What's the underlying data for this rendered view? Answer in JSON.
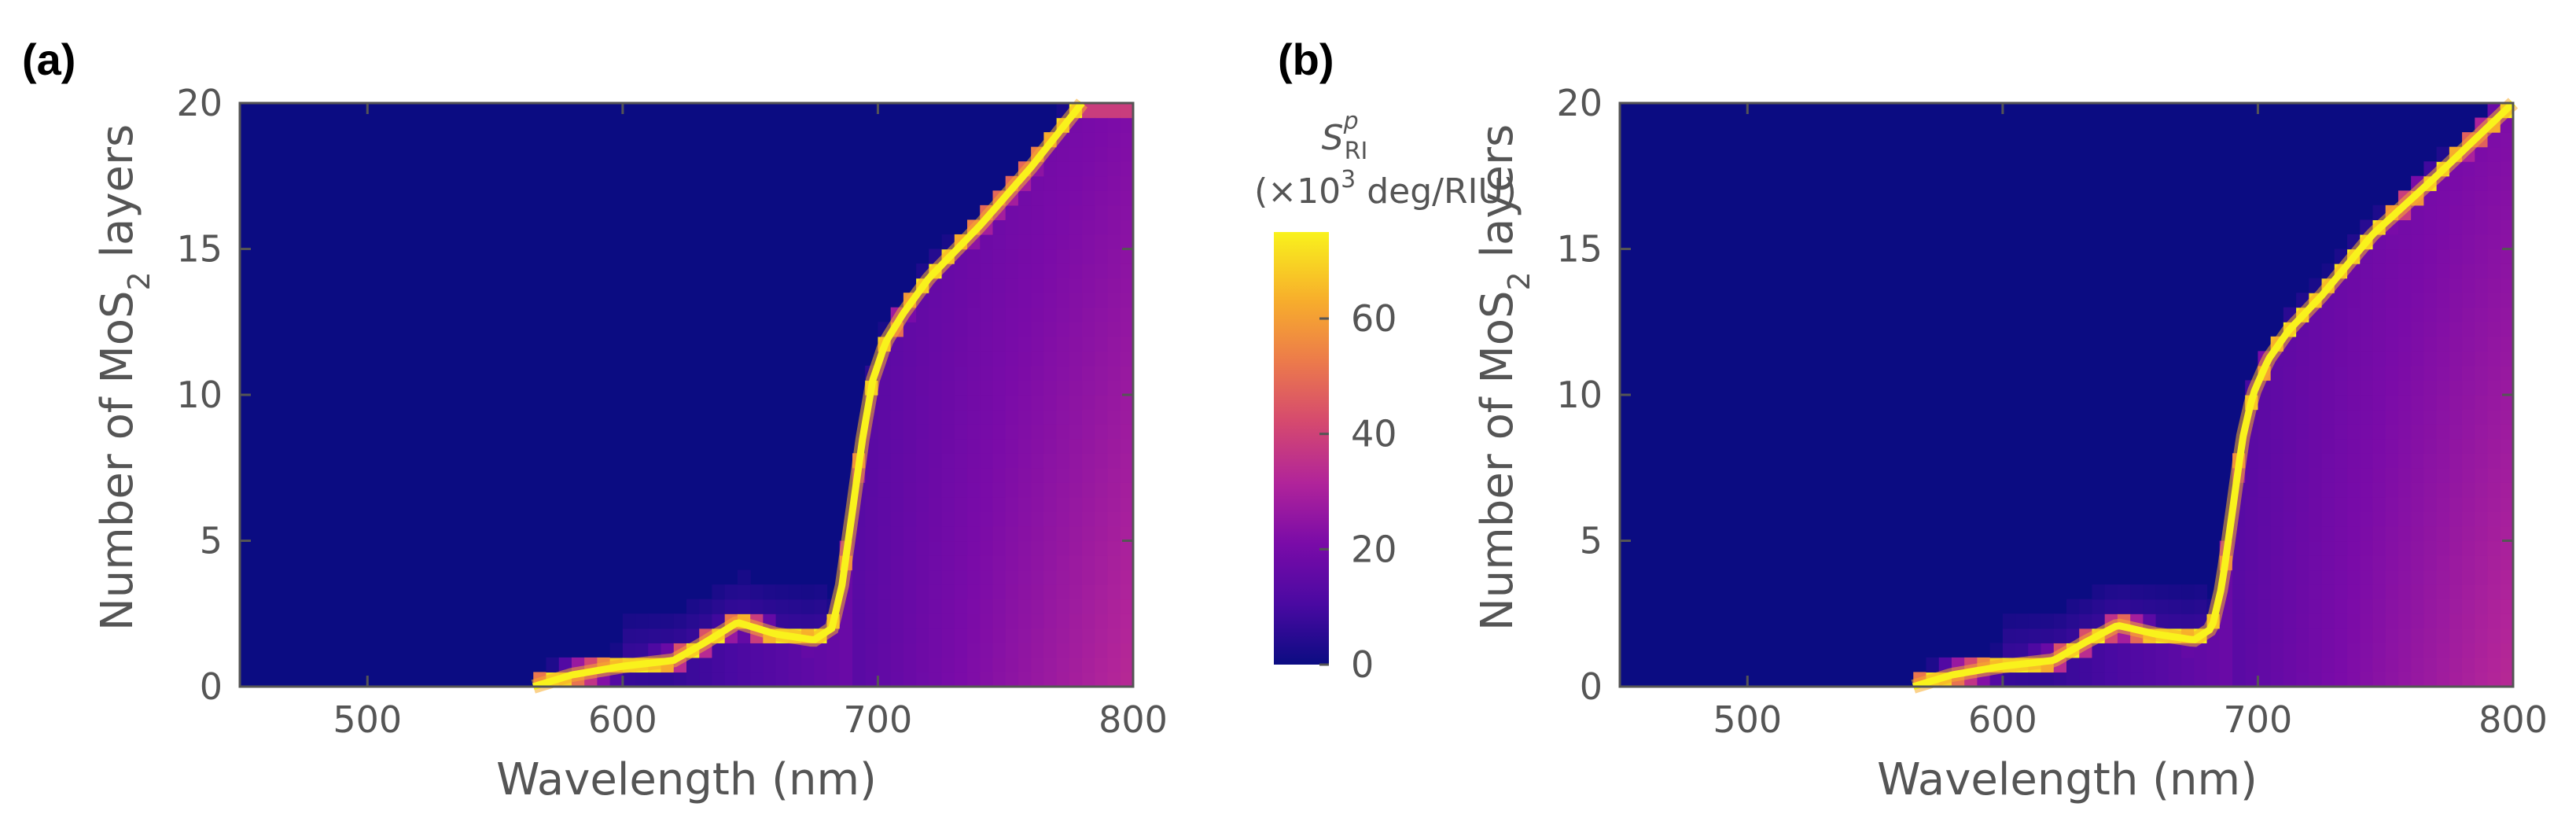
{
  "colors": {
    "colormap": [
      "#0b0c82",
      "#4a09a2",
      "#7a0ba8",
      "#b1249a",
      "#d5496f",
      "#ec7a4b",
      "#f7ad2c",
      "#f9f21c"
    ],
    "axis": "#555555",
    "panel_label": "#000000"
  },
  "chart_data": [
    {
      "panel": "(a)",
      "type": "heatmap",
      "title": "",
      "xlabel": "Wavelength (nm)",
      "ylabel_prefix": "Number of MoS",
      "ylabel_sub": "2",
      "ylabel_suffix": " layers",
      "xlim": [
        450,
        800
      ],
      "ylim": [
        0,
        20
      ],
      "xticks": [
        500,
        600,
        700,
        800
      ],
      "yticks": [
        0,
        5,
        10,
        15,
        20
      ],
      "xticklabels": [
        "500",
        "600",
        "700",
        "800"
      ],
      "yticklabels": [
        "0",
        "5",
        "10",
        "15",
        "20"
      ],
      "ridge": {
        "description": "maximum sensitivity (~75e3 deg/RIU) versus wavelength and layer number",
        "points": [
          [
            565,
            0
          ],
          [
            580,
            0.4
          ],
          [
            600,
            0.7
          ],
          [
            620,
            0.9
          ],
          [
            632,
            1.5
          ],
          [
            645,
            2.2
          ],
          [
            660,
            1.8
          ],
          [
            675,
            1.6
          ],
          [
            682,
            2.0
          ],
          [
            686,
            3.5
          ],
          [
            690,
            6.0
          ],
          [
            694,
            8.5
          ],
          [
            698,
            10.5
          ],
          [
            703,
            11.8
          ],
          [
            710,
            12.8
          ],
          [
            720,
            14.0
          ],
          [
            740,
            15.8
          ],
          [
            760,
            17.8
          ],
          [
            780,
            20.0
          ]
        ]
      },
      "background": "low sensitivity (~2e3) left of ridge; rises to ~20-35e3 toward 800 nm, 0 layers right of ridge"
    },
    {
      "panel": "(b)",
      "type": "heatmap",
      "title": "",
      "xlabel": "Wavelength (nm)",
      "ylabel_prefix": "Number of MoS",
      "ylabel_sub": "2",
      "ylabel_suffix": " layers",
      "xlim": [
        450,
        800
      ],
      "ylim": [
        0,
        20
      ],
      "xticks": [
        500,
        600,
        700,
        800
      ],
      "yticks": [
        0,
        5,
        10,
        15,
        20
      ],
      "xticklabels": [
        "500",
        "600",
        "700",
        "800"
      ],
      "yticklabels": [
        "0",
        "5",
        "10",
        "15",
        "20"
      ],
      "ridge": {
        "description": "maximum sensitivity (~75e3 deg/RIU) versus wavelength and layer number",
        "points": [
          [
            565,
            0
          ],
          [
            580,
            0.4
          ],
          [
            600,
            0.7
          ],
          [
            620,
            0.9
          ],
          [
            632,
            1.5
          ],
          [
            645,
            2.1
          ],
          [
            660,
            1.8
          ],
          [
            675,
            1.6
          ],
          [
            682,
            2.0
          ],
          [
            686,
            3.5
          ],
          [
            690,
            6.0
          ],
          [
            694,
            8.5
          ],
          [
            698,
            10.0
          ],
          [
            704,
            11.2
          ],
          [
            712,
            12.2
          ],
          [
            725,
            13.4
          ],
          [
            745,
            15.5
          ],
          [
            770,
            17.5
          ],
          [
            800,
            20.0
          ]
        ]
      },
      "background": "low sensitivity (~2e3) left of ridge; rises to ~20-35e3 toward 800 nm, 0 layers right of ridge"
    }
  ],
  "colorbar": {
    "symbol": "S",
    "superscript": "p",
    "subscript": "RI",
    "units_open": "(×10",
    "units_exp": "3",
    "units_close": " deg/RIU)",
    "range": [
      0,
      75
    ],
    "ticks": [
      0,
      20,
      40,
      60
    ],
    "ticklabels": [
      "0",
      "20",
      "40",
      "60"
    ]
  }
}
